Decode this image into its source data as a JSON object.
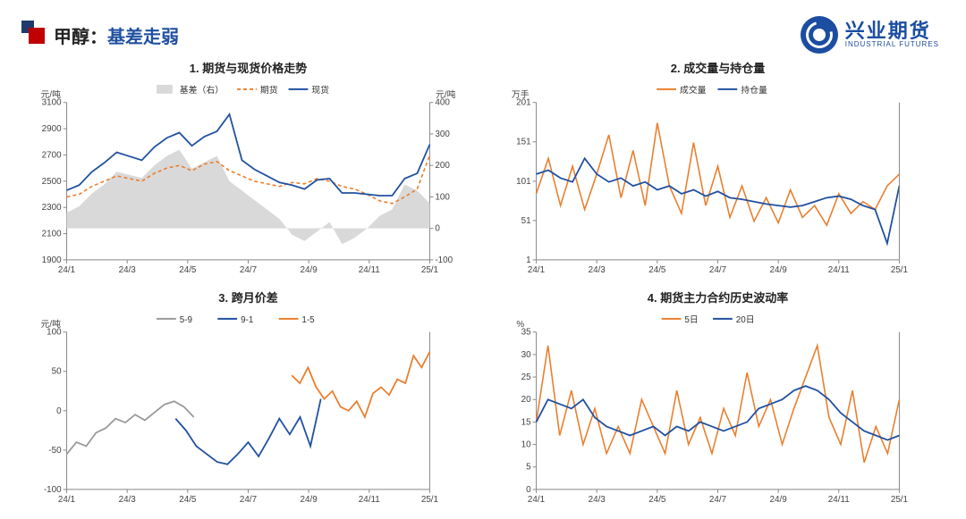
{
  "header": {
    "title_main": "甲醇：",
    "title_sub": "基差走弱",
    "brand_cn": "兴业期货",
    "brand_en": "INDUSTRIAL FUTURES"
  },
  "colors": {
    "blue": "#2050a0",
    "orange": "#e97f2e",
    "gray_series": "#999999",
    "area_fill": "#d9d9d9",
    "axis": "#888888",
    "grid": "#e0e0e0",
    "text": "#333333"
  },
  "x_axis": {
    "ticks": [
      "24/1",
      "24/3",
      "24/5",
      "24/7",
      "24/9",
      "24/11",
      "25/1"
    ],
    "positions": [
      0,
      0.1667,
      0.3333,
      0.5,
      0.6667,
      0.8333,
      1.0
    ]
  },
  "chart1": {
    "title": "1. 期货与现货价格走势",
    "y_left_unit": "元/吨",
    "y_right_unit": "元/吨",
    "y_left": {
      "min": 1900,
      "max": 3100,
      "step": 200
    },
    "y_right": {
      "min": -100,
      "max": 400,
      "step": 100
    },
    "legend": [
      {
        "label": "基差（右）",
        "type": "area",
        "color": "#d9d9d9"
      },
      {
        "label": "期货",
        "type": "dash",
        "color": "#e97f2e"
      },
      {
        "label": "现货",
        "type": "line",
        "color": "#2050a0"
      }
    ],
    "basis": [
      50,
      70,
      110,
      140,
      180,
      170,
      160,
      200,
      230,
      250,
      190,
      210,
      230,
      150,
      120,
      90,
      60,
      30,
      -20,
      -40,
      -10,
      20,
      -50,
      -30,
      0,
      40,
      60,
      140,
      120,
      80
    ],
    "futures": [
      2380,
      2400,
      2460,
      2500,
      2540,
      2520,
      2500,
      2560,
      2600,
      2620,
      2580,
      2630,
      2650,
      2580,
      2540,
      2500,
      2480,
      2460,
      2490,
      2480,
      2520,
      2500,
      2460,
      2440,
      2400,
      2350,
      2330,
      2380,
      2440,
      2700
    ],
    "spot": [
      2430,
      2470,
      2570,
      2640,
      2720,
      2690,
      2660,
      2760,
      2830,
      2870,
      2770,
      2840,
      2880,
      3010,
      2660,
      2590,
      2540,
      2490,
      2470,
      2440,
      2510,
      2520,
      2410,
      2410,
      2400,
      2390,
      2390,
      2520,
      2560,
      2780
    ]
  },
  "chart2": {
    "title": "2. 成交量与持仓量",
    "y_unit": "万手",
    "y": {
      "min": 1,
      "max": 201,
      "step": 50
    },
    "legend": [
      {
        "label": "成交量",
        "type": "line",
        "color": "#e97f2e"
      },
      {
        "label": "持仓量",
        "type": "line",
        "color": "#2050a0"
      }
    ],
    "volume": [
      85,
      130,
      70,
      120,
      65,
      110,
      160,
      80,
      140,
      70,
      175,
      95,
      60,
      150,
      70,
      120,
      55,
      95,
      50,
      80,
      48,
      90,
      55,
      70,
      45,
      85,
      60,
      75,
      65,
      95,
      110
    ],
    "oi": [
      110,
      115,
      105,
      100,
      130,
      110,
      100,
      105,
      95,
      100,
      90,
      95,
      85,
      90,
      82,
      88,
      80,
      78,
      75,
      72,
      70,
      68,
      70,
      75,
      80,
      82,
      78,
      70,
      65,
      22,
      95
    ]
  },
  "chart3": {
    "title": "3. 跨月价差",
    "y_unit": "元/吨",
    "y": {
      "min": -100,
      "max": 100,
      "step": 50
    },
    "legend": [
      {
        "label": "5-9",
        "type": "line",
        "color": "#999999"
      },
      {
        "label": "9-1",
        "type": "line",
        "color": "#2050a0"
      },
      {
        "label": "1-5",
        "type": "line",
        "color": "#e97f2e"
      }
    ],
    "series_59": {
      "start": 0.0,
      "end": 0.35,
      "vals": [
        -55,
        -40,
        -45,
        -28,
        -22,
        -10,
        -15,
        -5,
        -12,
        -2,
        8,
        12,
        5,
        -8
      ]
    },
    "series_91": {
      "start": 0.3,
      "end": 0.7,
      "vals": [
        -10,
        -25,
        -45,
        -55,
        -65,
        -68,
        -55,
        -40,
        -58,
        -35,
        -10,
        -30,
        -8,
        -45,
        15
      ]
    },
    "series_15": {
      "start": 0.62,
      "end": 1.0,
      "vals": [
        45,
        35,
        55,
        30,
        15,
        25,
        5,
        0,
        12,
        -8,
        22,
        30,
        20,
        40,
        35,
        70,
        55,
        75
      ]
    }
  },
  "chart4": {
    "title": "4. 期货主力合约历史波动率",
    "y_unit": "%",
    "y": {
      "min": 0,
      "max": 35,
      "step": 5
    },
    "legend": [
      {
        "label": "5日",
        "type": "line",
        "color": "#e97f2e"
      },
      {
        "label": "20日",
        "type": "line",
        "color": "#2050a0"
      }
    ],
    "d5": [
      15,
      32,
      12,
      22,
      10,
      18,
      8,
      14,
      8,
      20,
      14,
      8,
      22,
      10,
      16,
      8,
      18,
      12,
      26,
      14,
      20,
      10,
      18,
      25,
      32,
      16,
      10,
      22,
      6,
      14,
      8,
      20
    ],
    "d20": [
      15,
      20,
      19,
      18,
      20,
      16,
      14,
      13,
      12,
      13,
      14,
      12,
      14,
      13,
      15,
      14,
      13,
      14,
      15,
      18,
      19,
      20,
      22,
      23,
      22,
      20,
      17,
      15,
      13,
      12,
      11,
      12
    ]
  }
}
